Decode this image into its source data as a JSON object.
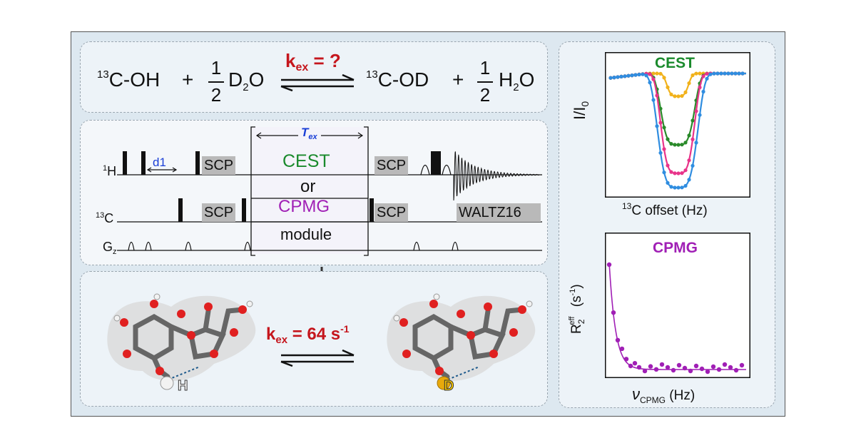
{
  "equation": {
    "reactant1": "C-OH",
    "reactant1_sup": "13",
    "plus": "+",
    "half_num": "1",
    "half_den": "2",
    "reactant2": "D",
    "reactant2_sub": "2",
    "reactant2_tail": "O",
    "kex_label": "k",
    "kex_sub": "ex",
    "kex_value": " = ?",
    "product1": "C-OD",
    "product1_sup": "13",
    "product2": "H",
    "product2_sub": "2",
    "product2_tail": "O"
  },
  "pulse": {
    "h_label": "H",
    "h_sup": "1",
    "c_label": "C",
    "c_sup": "13",
    "g_label": "G",
    "g_sub": "z",
    "d1": "d1",
    "scp": "SCP",
    "waltz": "WALTZ16",
    "tex": "T",
    "tex_sub": "ex",
    "cest": "CEST",
    "or": "or",
    "cpmg": "CPMG",
    "module": "module"
  },
  "molecules": {
    "kex": "k",
    "kex_sub": "ex",
    "kex_value": " = 64 s",
    "kex_exp": "-1",
    "h_atom": "H",
    "d_atom": "D"
  },
  "cest_plot": {
    "title": "CEST",
    "ylabel": "I/I",
    "ylabel_sub": "0",
    "xlabel": "C offset (Hz)",
    "xlabel_sup": "13"
  },
  "cpmg_plot": {
    "title": "CPMG",
    "ylabel": "R",
    "ylabel_sub": "2",
    "ylabel_sup": "eff",
    "ylabel_unit": " (s",
    "ylabel_unit_exp": "-1",
    "ylabel_close": ")",
    "xlabel": "ν",
    "xlabel_sub": "CPMG",
    "xlabel_unit": " (Hz)"
  },
  "colors": {
    "red": "#c5161d",
    "green": "#1a8a2c",
    "purple": "#a01fb5",
    "blue": "#1a3fd6",
    "cest_blue": "#2f8de0",
    "cest_pink": "#e8348a",
    "cest_green": "#2a8a2a",
    "cest_yellow": "#f1b21c"
  }
}
